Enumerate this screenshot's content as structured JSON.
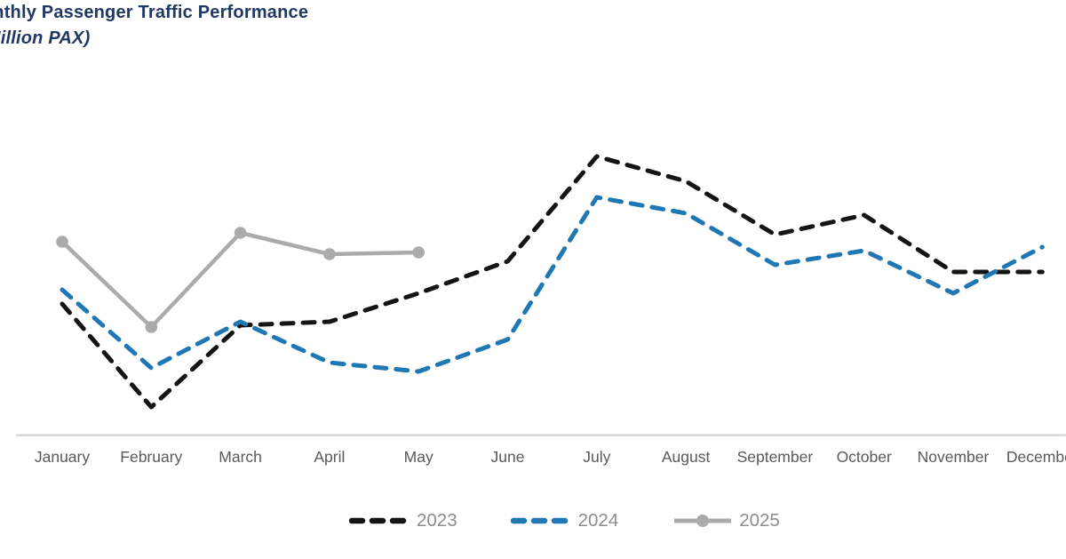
{
  "title": {
    "line1": "Monthly Passenger Traffic Performance",
    "line2": "(Million PAX)"
  },
  "chart_data": {
    "type": "line",
    "title": "Monthly Passenger Traffic Performance (Million PAX)",
    "units": "Million PAX",
    "categories": [
      "January",
      "February",
      "March",
      "April",
      "May",
      "June",
      "July",
      "August",
      "September",
      "October",
      "November",
      "December"
    ],
    "series": [
      {
        "name": "2023",
        "line_style": "dashed",
        "color": "#141414",
        "values": [
          37,
          8,
          31,
          32,
          40,
          49,
          78.5,
          71.5,
          56.5,
          62,
          46,
          46
        ]
      },
      {
        "name": "2024",
        "line_style": "dashed",
        "color": "#1f77b4",
        "values": [
          41,
          19,
          32,
          20.5,
          18,
          27,
          67,
          62.5,
          48,
          52,
          40,
          53
        ]
      },
      {
        "name": "2025",
        "line_style": "solid",
        "markers": true,
        "color": "#ababab",
        "values": [
          54.5,
          30.5,
          57,
          51,
          51.5
        ]
      }
    ],
    "y_axis": {
      "labels_visible": false,
      "range": [
        0,
        100
      ],
      "note": "Y-axis tick labels are cropped out of the frame; series values are relative (0-100) estimates read from the plot."
    },
    "x_axis": {
      "labels_visible": true
    },
    "legend": {
      "position": "bottom"
    },
    "grid": false
  },
  "legend": {
    "items": [
      {
        "label": "2023",
        "style": "dashed",
        "color": "#141414"
      },
      {
        "label": "2024",
        "style": "dashed",
        "color": "#1f77b4"
      },
      {
        "label": "2025",
        "style": "solid-marker",
        "color": "#ababab"
      }
    ]
  },
  "colors": {
    "title": "#203864",
    "axis_line": "#d9d9d9",
    "month_label": "#595959",
    "legend_text": "#8c8c8c"
  }
}
